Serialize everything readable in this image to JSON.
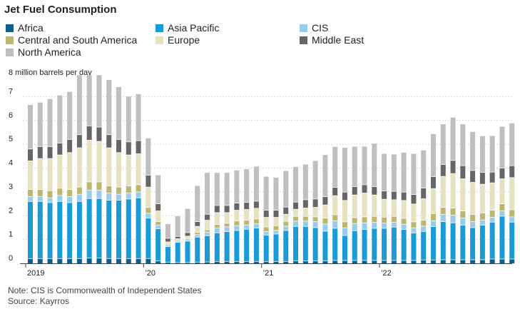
{
  "chart_data": {
    "type": "bar",
    "stacked": true,
    "title": "Jet Fuel Consumption",
    "ylabel": "8 million barrels per day",
    "xlabel": "",
    "ylim": [
      0,
      8
    ],
    "yticks": [
      "0",
      "1",
      "2",
      "3",
      "4",
      "5",
      "6",
      "7"
    ],
    "xtick_labels": [
      "2019",
      "’20",
      "’21",
      "’22"
    ],
    "xtick_indices": [
      0,
      12,
      24,
      36
    ],
    "legend_position": "top",
    "grid": true,
    "series": [
      {
        "name": "Africa",
        "color": "#0f5e8c",
        "values": [
          0.2,
          0.2,
          0.2,
          0.2,
          0.2,
          0.2,
          0.22,
          0.22,
          0.2,
          0.2,
          0.2,
          0.2,
          0.2,
          0.1,
          0.05,
          0.03,
          0.03,
          0.05,
          0.06,
          0.08,
          0.08,
          0.08,
          0.08,
          0.08,
          0.08,
          0.08,
          0.08,
          0.1,
          0.1,
          0.1,
          0.1,
          0.12,
          0.12,
          0.12,
          0.12,
          0.12,
          0.12,
          0.12,
          0.12,
          0.12,
          0.14,
          0.14,
          0.15,
          0.15,
          0.15,
          0.15,
          0.15,
          0.18,
          0.18,
          0.18
        ]
      },
      {
        "name": "Asia Pacific",
        "color": "#1a9ad6",
        "values": [
          2.4,
          2.4,
          2.35,
          2.4,
          2.35,
          2.4,
          2.5,
          2.5,
          2.45,
          2.45,
          2.5,
          2.55,
          1.7,
          1.35,
          0.65,
          0.85,
          0.9,
          1.05,
          1.1,
          1.2,
          1.25,
          1.3,
          1.35,
          1.4,
          1.1,
          1.15,
          1.3,
          1.45,
          1.45,
          1.4,
          1.25,
          1.35,
          1.05,
          1.25,
          1.3,
          1.35,
          1.35,
          1.4,
          1.3,
          1.15,
          1.2,
          1.4,
          1.6,
          1.55,
          1.45,
          1.35,
          1.45,
          1.55,
          1.8,
          1.55
        ]
      },
      {
        "name": "CIS",
        "color": "#99ccea",
        "values": [
          0.2,
          0.2,
          0.2,
          0.25,
          0.25,
          0.3,
          0.35,
          0.35,
          0.3,
          0.25,
          0.25,
          0.25,
          0.2,
          0.15,
          0.05,
          0.05,
          0.06,
          0.1,
          0.15,
          0.2,
          0.2,
          0.2,
          0.18,
          0.18,
          0.15,
          0.15,
          0.18,
          0.22,
          0.22,
          0.25,
          0.3,
          0.32,
          0.32,
          0.3,
          0.28,
          0.25,
          0.22,
          0.2,
          0.22,
          0.22,
          0.22,
          0.25,
          0.3,
          0.32,
          0.3,
          0.25,
          0.22,
          0.2,
          0.22,
          0.22
        ]
      },
      {
        "name": "Central and South America",
        "color": "#bdb66f",
        "values": [
          0.3,
          0.3,
          0.3,
          0.3,
          0.3,
          0.3,
          0.35,
          0.35,
          0.3,
          0.3,
          0.3,
          0.3,
          0.25,
          0.15,
          0.05,
          0.05,
          0.05,
          0.1,
          0.1,
          0.15,
          0.15,
          0.2,
          0.2,
          0.2,
          0.2,
          0.2,
          0.2,
          0.2,
          0.2,
          0.2,
          0.25,
          0.25,
          0.25,
          0.25,
          0.25,
          0.25,
          0.25,
          0.25,
          0.25,
          0.25,
          0.25,
          0.3,
          0.3,
          0.3,
          0.3,
          0.3,
          0.3,
          0.3,
          0.3,
          0.3
        ]
      },
      {
        "name": "Europe",
        "color": "#e5e1c1",
        "values": [
          1.2,
          1.3,
          1.35,
          1.4,
          1.55,
          1.65,
          1.75,
          1.7,
          1.6,
          1.45,
          1.3,
          1.3,
          0.85,
          0.45,
          0.1,
          0.05,
          0.1,
          0.25,
          0.4,
          0.5,
          0.45,
          0.45,
          0.45,
          0.45,
          0.4,
          0.35,
          0.3,
          0.3,
          0.35,
          0.4,
          0.55,
          0.8,
          0.9,
          0.95,
          1.0,
          0.9,
          0.75,
          0.7,
          0.75,
          0.75,
          0.9,
          1.05,
          1.3,
          1.45,
          1.35,
          1.35,
          1.2,
          1.15,
          1.05,
          1.35
        ]
      },
      {
        "name": "Middle East",
        "color": "#666666",
        "values": [
          0.5,
          0.5,
          0.5,
          0.5,
          0.55,
          0.55,
          0.6,
          0.6,
          0.55,
          0.55,
          0.55,
          0.55,
          0.5,
          0.3,
          0.15,
          0.1,
          0.15,
          0.2,
          0.25,
          0.3,
          0.3,
          0.3,
          0.3,
          0.3,
          0.3,
          0.3,
          0.3,
          0.3,
          0.35,
          0.35,
          0.35,
          0.35,
          0.35,
          0.35,
          0.35,
          0.35,
          0.35,
          0.35,
          0.35,
          0.4,
          0.45,
          0.5,
          0.5,
          0.55,
          0.55,
          0.5,
          0.5,
          0.45,
          0.45,
          0.5
        ]
      },
      {
        "name": "North America",
        "color": "#bfbfbf",
        "values": [
          1.85,
          1.85,
          2.0,
          2.0,
          2.0,
          2.5,
          2.13,
          2.18,
          2.3,
          2.2,
          1.9,
          1.95,
          1.55,
          1.2,
          0.6,
          0.85,
          1.0,
          1.5,
          1.74,
          1.37,
          1.37,
          1.37,
          1.39,
          1.46,
          1.41,
          1.37,
          1.52,
          1.48,
          1.48,
          1.6,
          1.75,
          1.7,
          1.86,
          1.68,
          1.6,
          1.81,
          1.56,
          1.55,
          1.66,
          1.71,
          1.58,
          1.79,
          1.69,
          1.8,
          1.74,
          1.62,
          1.52,
          1.52,
          1.74,
          1.78
        ]
      }
    ],
    "x": [
      "2019-01",
      "2019-02",
      "2019-03",
      "2019-04",
      "2019-05",
      "2019-06",
      "2019-07",
      "2019-08",
      "2019-09",
      "2019-10",
      "2019-11",
      "2019-12",
      "2020-01",
      "2020-02",
      "2020-03",
      "2020-04",
      "2020-05",
      "2020-06",
      "2020-07",
      "2020-08",
      "2020-09",
      "2020-10",
      "2020-11",
      "2020-12",
      "2021-01",
      "2021-02",
      "2021-03",
      "2021-04",
      "2021-05",
      "2021-06",
      "2021-07",
      "2021-08",
      "2021-09",
      "2021-10",
      "2021-11",
      "2021-12",
      "2022-01",
      "2022-02",
      "2022-03",
      "2022-04",
      "2022-05",
      "2022-06",
      "2022-07",
      "2022-08",
      "2022-09",
      "2022-10",
      "2022-11",
      "2022-12",
      "2023-01",
      "2023-02"
    ]
  },
  "footer": {
    "note": "Note: CIS is Commonwealth of Independent States",
    "source": "Source: Kayrros"
  }
}
